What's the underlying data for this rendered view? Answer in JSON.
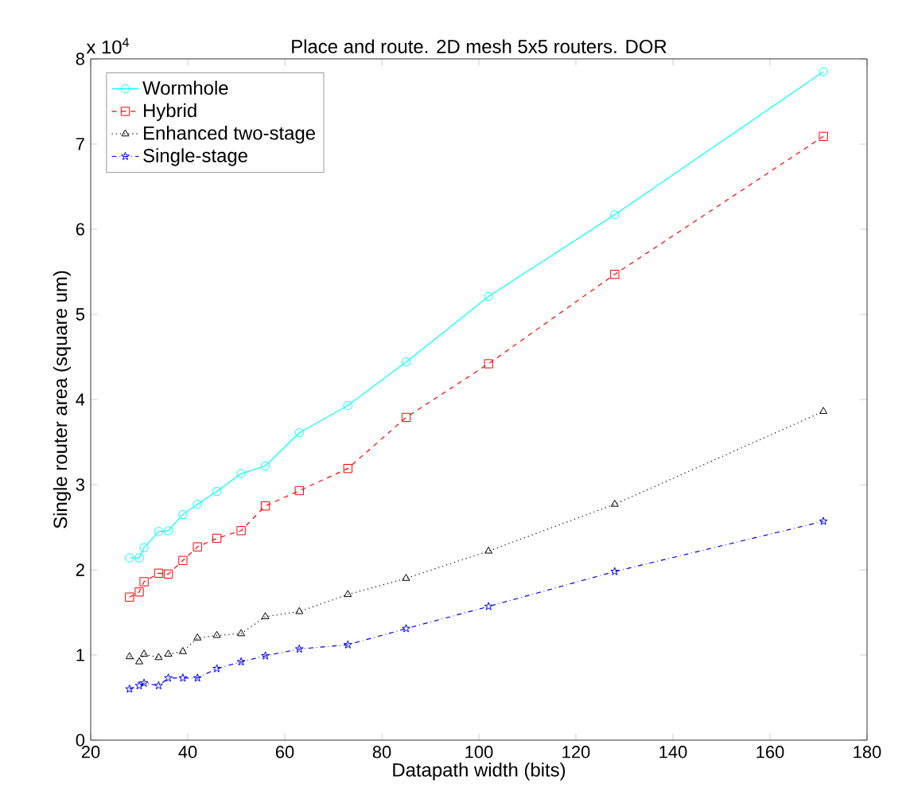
{
  "chart_data": {
    "type": "line",
    "title": "Place and route. 2D mesh 5x5 routers. DOR",
    "xlabel": "Datapath width (bits)",
    "ylabel": "Single router area (square um)",
    "annotations": [
      "x 10$^{4}$"
    ],
    "x": [
      28,
      30,
      31,
      34,
      36,
      39,
      42,
      46,
      51,
      56,
      63,
      73,
      85,
      102,
      128,
      171
    ],
    "series": [
      {
        "name": "Wormhole",
        "color": "#00ffff",
        "marker": "circle",
        "line_style": "solid",
        "values": [
          2.14,
          2.14,
          2.26,
          2.45,
          2.46,
          2.65,
          2.77,
          2.92,
          3.13,
          3.22,
          3.61,
          3.93,
          4.44,
          5.21,
          6.17,
          7.85
        ]
      },
      {
        "name": "Hybrid",
        "color": "#ff0000",
        "marker": "square",
        "line_style": "dashed",
        "values": [
          1.68,
          1.74,
          1.86,
          1.96,
          1.95,
          2.11,
          2.27,
          2.37,
          2.46,
          2.75,
          2.93,
          3.19,
          3.79,
          4.42,
          5.47,
          7.09
        ]
      },
      {
        "name": "Enhanced two-stage",
        "color": "#000000",
        "marker": "triangle",
        "line_style": "dotted",
        "values": [
          0.98,
          0.92,
          1.01,
          0.97,
          1.01,
          1.04,
          1.2,
          1.23,
          1.25,
          1.45,
          1.51,
          1.71,
          1.9,
          2.22,
          2.77,
          3.86
        ]
      },
      {
        "name": "Single-stage",
        "color": "#0000ff",
        "marker": "star",
        "line_style": "dashdot",
        "values": [
          0.6,
          0.64,
          0.67,
          0.64,
          0.73,
          0.73,
          0.73,
          0.84,
          0.92,
          0.99,
          1.07,
          1.12,
          1.31,
          1.57,
          1.98,
          2.57
        ]
      }
    ],
    "xlim": [
      20,
      180
    ],
    "ylim": [
      0,
      8
    ],
    "xticks": [
      20,
      40,
      60,
      80,
      100,
      120,
      140,
      160,
      180
    ],
    "yticks": [
      0,
      1,
      2,
      3,
      4,
      5,
      6,
      7,
      8
    ],
    "grid": false,
    "legend": "top left"
  }
}
